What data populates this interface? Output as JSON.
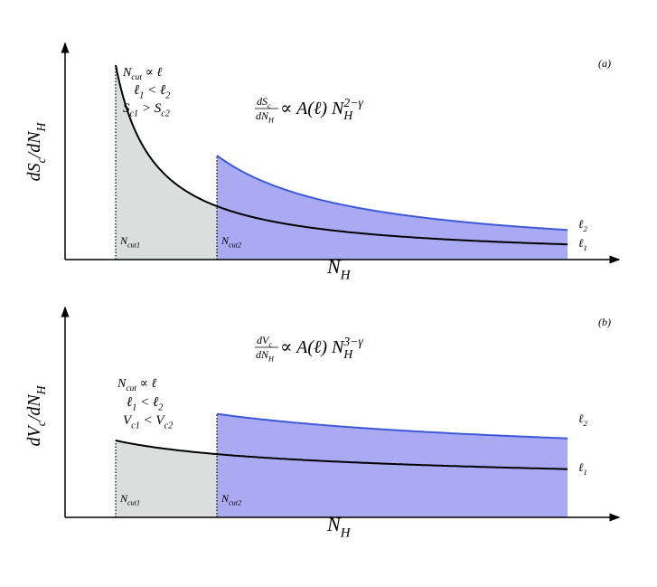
{
  "panels": [
    {
      "label": "(a)",
      "y_axis_label": [
        "dS",
        "c",
        "/dN",
        "H"
      ],
      "x_axis_label": [
        "N",
        "H"
      ],
      "annotation": [
        [
          "N",
          "cut",
          " ∝ ℓ"
        ],
        [
          "ℓ",
          "1",
          " < ℓ",
          "2"
        ],
        [
          "S",
          "c1",
          " > S",
          "c2"
        ]
      ],
      "formula": {
        "numerator": [
          "dS",
          "c"
        ],
        "denominator": [
          "dN",
          "H"
        ],
        "rest": [
          " ∝ A(ℓ) N",
          "H",
          "2−γ"
        ]
      },
      "cut_labels": [
        [
          "N",
          "cut1"
        ],
        [
          "N",
          "cut2"
        ]
      ],
      "curve_labels": [
        [
          "ℓ",
          "2"
        ],
        [
          "ℓ",
          "1"
        ]
      ]
    },
    {
      "label": "(b)",
      "y_axis_label": [
        "dV",
        "c",
        "/dN",
        "H"
      ],
      "x_axis_label": [
        "N",
        "H"
      ],
      "annotation": [
        [
          "N",
          "cut",
          " ∝ ℓ"
        ],
        [
          "ℓ",
          "1",
          " < ℓ",
          "2"
        ],
        [
          "V",
          "c1",
          " < V",
          "c2"
        ]
      ],
      "formula": {
        "numerator": [
          "dV",
          "c"
        ],
        "denominator": [
          "dN",
          "H"
        ],
        "rest": [
          " ∝ A(ℓ) N",
          "H",
          "3−γ"
        ]
      },
      "cut_labels": [
        [
          "N",
          "cut1"
        ],
        [
          "N",
          "cut2"
        ]
      ],
      "curve_labels": [
        [
          "ℓ",
          "2"
        ],
        [
          "ℓ",
          "1"
        ]
      ]
    }
  ]
}
